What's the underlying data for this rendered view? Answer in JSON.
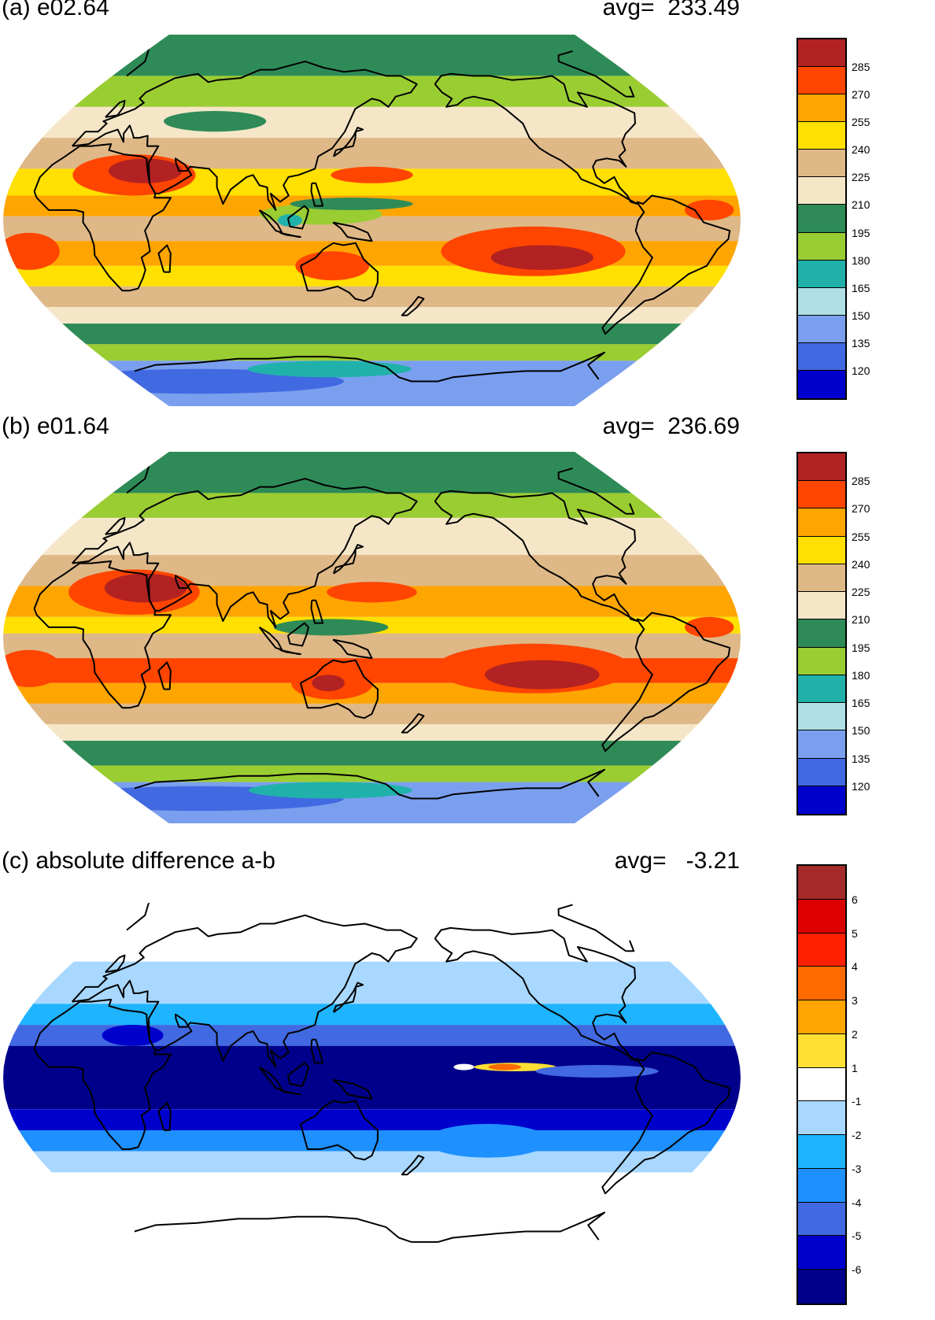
{
  "panels": [
    {
      "id": "a",
      "title": "(a) e02.64",
      "avg": "avg=  233.49",
      "colorbar": {
        "labels": [
          "285",
          "270",
          "255",
          "240",
          "225",
          "210",
          "195",
          "180",
          "165",
          "150",
          "135",
          "120"
        ],
        "colors": [
          "#B22222",
          "#FF4500",
          "#FFA500",
          "#FFE000",
          "#DEB887",
          "#F5E6C8",
          "#2E8B57",
          "#9ACD32",
          "#20B2AA",
          "#B0E0E6",
          "#7B9FEF",
          "#4169E1",
          "#0000CD"
        ]
      },
      "field": {
        "background": "#F5E6C8",
        "bands": [
          {
            "lat": [
              70,
              90
            ],
            "color": "#2E8B57"
          },
          {
            "lat": [
              55,
              70
            ],
            "color": "#9ACD32"
          },
          {
            "lat": [
              40,
              55
            ],
            "color": "#F5E6C8"
          },
          {
            "lat": [
              25,
              40
            ],
            "color": "#DEB887"
          },
          {
            "lat": [
              12,
              25
            ],
            "color": "#FFE000"
          },
          {
            "lat": [
              2,
              12
            ],
            "color": "#FFA500"
          },
          {
            "lat": [
              -10,
              2
            ],
            "color": "#DEB887"
          },
          {
            "lat": [
              -22,
              -10
            ],
            "color": "#FFA500"
          },
          {
            "lat": [
              -32,
              -22
            ],
            "color": "#FFE000"
          },
          {
            "lat": [
              -42,
              -32
            ],
            "color": "#DEB887"
          },
          {
            "lat": [
              -50,
              -42
            ],
            "color": "#F5E6C8"
          },
          {
            "lat": [
              -60,
              -50
            ],
            "color": "#2E8B57"
          },
          {
            "lat": [
              -68,
              -60
            ],
            "color": "#9ACD32"
          },
          {
            "lat": [
              -90,
              -68
            ],
            "color": "#7B9FEF"
          }
        ],
        "blobs": [
          {
            "lon": 30,
            "lat": 22,
            "rlon": 30,
            "rlat": 10,
            "color": "#FF4500"
          },
          {
            "lon": 35,
            "lat": 24,
            "rlon": 18,
            "rlat": 6,
            "color": "#B22222"
          },
          {
            "lon": -130,
            "lat": -15,
            "rlon": 45,
            "rlat": 12,
            "color": "#FF4500"
          },
          {
            "lon": -125,
            "lat": -18,
            "rlon": 25,
            "rlat": 6,
            "color": "#B22222"
          },
          {
            "lon": -20,
            "lat": -15,
            "rlon": 15,
            "rlat": 9,
            "color": "#FF4500"
          },
          {
            "lon": 130,
            "lat": -22,
            "rlon": 18,
            "rlat": 7,
            "color": "#FF4500"
          },
          {
            "lon": 125,
            "lat": 3,
            "rlon": 30,
            "rlat": 5,
            "color": "#9ACD32"
          },
          {
            "lon": 110,
            "lat": 0,
            "rlon": 6,
            "rlat": 3,
            "color": "#20B2AA"
          },
          {
            "lon": 140,
            "lat": 8,
            "rlon": 30,
            "rlat": 3,
            "color": "#2E8B57"
          },
          {
            "lon": -45,
            "lat": 5,
            "rlon": 12,
            "rlat": 5,
            "color": "#FF4500"
          },
          {
            "lon": 150,
            "lat": 22,
            "rlon": 20,
            "rlat": 4,
            "color": "#FF4500"
          },
          {
            "lon": 20,
            "lat": -78,
            "rlon": 70,
            "rlat": 6,
            "color": "#4169E1"
          },
          {
            "lon": 120,
            "lat": -72,
            "rlon": 40,
            "rlat": 4,
            "color": "#20B2AA"
          },
          {
            "lon": 60,
            "lat": 48,
            "rlon": 25,
            "rlat": 5,
            "color": "#2E8B57"
          }
        ]
      }
    },
    {
      "id": "b",
      "title": "(b) e01.64",
      "avg": "avg=  236.69",
      "colorbar": {
        "labels": [
          "285",
          "270",
          "255",
          "240",
          "225",
          "210",
          "195",
          "180",
          "165",
          "150",
          "135",
          "120"
        ],
        "colors": [
          "#B22222",
          "#FF4500",
          "#FFA500",
          "#FFE000",
          "#DEB887",
          "#F5E6C8",
          "#2E8B57",
          "#9ACD32",
          "#20B2AA",
          "#B0E0E6",
          "#7B9FEF",
          "#4169E1",
          "#0000CD"
        ]
      },
      "field": {
        "background": "#F5E6C8",
        "bands": [
          {
            "lat": [
              70,
              90
            ],
            "color": "#2E8B57"
          },
          {
            "lat": [
              58,
              70
            ],
            "color": "#9ACD32"
          },
          {
            "lat": [
              40,
              58
            ],
            "color": "#F5E6C8"
          },
          {
            "lat": [
              25,
              40
            ],
            "color": "#DEB887"
          },
          {
            "lat": [
              10,
              25
            ],
            "color": "#FFA500"
          },
          {
            "lat": [
              2,
              10
            ],
            "color": "#FFE000"
          },
          {
            "lat": [
              -10,
              2
            ],
            "color": "#DEB887"
          },
          {
            "lat": [
              -22,
              -10
            ],
            "color": "#FF4500"
          },
          {
            "lat": [
              -32,
              -22
            ],
            "color": "#FFA500"
          },
          {
            "lat": [
              -42,
              -32
            ],
            "color": "#DEB887"
          },
          {
            "lat": [
              -50,
              -42
            ],
            "color": "#F5E6C8"
          },
          {
            "lat": [
              -62,
              -50
            ],
            "color": "#2E8B57"
          },
          {
            "lat": [
              -70,
              -62
            ],
            "color": "#9ACD32"
          },
          {
            "lat": [
              -90,
              -70
            ],
            "color": "#7B9FEF"
          }
        ],
        "blobs": [
          {
            "lon": 30,
            "lat": 22,
            "rlon": 32,
            "rlat": 11,
            "color": "#FF4500"
          },
          {
            "lon": 35,
            "lat": 24,
            "rlon": 20,
            "rlat": 7,
            "color": "#B22222"
          },
          {
            "lon": -130,
            "lat": -15,
            "rlon": 48,
            "rlat": 12,
            "color": "#FF4500"
          },
          {
            "lon": -125,
            "lat": -18,
            "rlon": 28,
            "rlat": 7,
            "color": "#B22222"
          },
          {
            "lon": -20,
            "lat": -15,
            "rlon": 16,
            "rlat": 9,
            "color": "#FF4500"
          },
          {
            "lon": 130,
            "lat": -22,
            "rlon": 20,
            "rlat": 8,
            "color": "#FF4500"
          },
          {
            "lon": 128,
            "lat": -22,
            "rlon": 8,
            "rlat": 4,
            "color": "#B22222"
          },
          {
            "lon": 130,
            "lat": 5,
            "rlon": 28,
            "rlat": 4,
            "color": "#2E8B57"
          },
          {
            "lon": -45,
            "lat": 5,
            "rlon": 12,
            "rlat": 5,
            "color": "#FF4500"
          },
          {
            "lon": 150,
            "lat": 22,
            "rlon": 22,
            "rlat": 5,
            "color": "#FF4500"
          },
          {
            "lon": 20,
            "lat": -78,
            "rlon": 70,
            "rlat": 6,
            "color": "#4169E1"
          },
          {
            "lon": 120,
            "lat": -74,
            "rlon": 40,
            "rlat": 4,
            "color": "#20B2AA"
          }
        ]
      }
    },
    {
      "id": "c",
      "title": "(c) absolute difference a-b",
      "avg": "avg=   -3.21",
      "colorbar": {
        "labels": [
          "6",
          "5",
          "4",
          "3",
          "2",
          "1",
          "-1",
          "-2",
          "-3",
          "-4",
          "-5",
          "-6"
        ],
        "colors": [
          "#A52A2A",
          "#DD0000",
          "#FF2000",
          "#FF6A00",
          "#FFA500",
          "#FFE033",
          "#FFFFFF",
          "#A8D8FF",
          "#1EB4FF",
          "#1E90FF",
          "#4169E1",
          "#0000CD",
          "#00008B"
        ]
      },
      "field": {
        "background": "#FFFFFF",
        "bands": [
          {
            "lat": [
              55,
              90
            ],
            "color": "#FFFFFF"
          },
          {
            "lat": [
              35,
              55
            ],
            "color": "#A8D8FF"
          },
          {
            "lat": [
              25,
              35
            ],
            "color": "#1EB4FF"
          },
          {
            "lat": [
              15,
              25
            ],
            "color": "#4169E1"
          },
          {
            "lat": [
              -15,
              15
            ],
            "color": "#00008B"
          },
          {
            "lat": [
              -25,
              -15
            ],
            "color": "#0000CD"
          },
          {
            "lat": [
              -35,
              -25
            ],
            "color": "#1E90FF"
          },
          {
            "lat": [
              -45,
              -35
            ],
            "color": "#A8D8FF"
          },
          {
            "lat": [
              -90,
              -45
            ],
            "color": "#FFFFFF"
          }
        ],
        "blobs": [
          {
            "lon": -140,
            "lat": 5,
            "rlon": 20,
            "rlat": 2,
            "color": "#FFE033"
          },
          {
            "lon": -145,
            "lat": 5,
            "rlon": 8,
            "rlat": 1.5,
            "color": "#FF6A00"
          },
          {
            "lon": -165,
            "lat": 5,
            "rlon": 5,
            "rlat": 1.5,
            "color": "#FFFFFF"
          },
          {
            "lon": -100,
            "lat": 3,
            "rlon": 30,
            "rlat": 3,
            "color": "#4169E1"
          },
          {
            "lon": -150,
            "lat": -30,
            "rlon": 30,
            "rlat": 8,
            "color": "#1E90FF"
          },
          {
            "lon": 30,
            "lat": 20,
            "rlon": 15,
            "rlat": 5,
            "color": "#0000CD"
          }
        ]
      }
    }
  ]
}
